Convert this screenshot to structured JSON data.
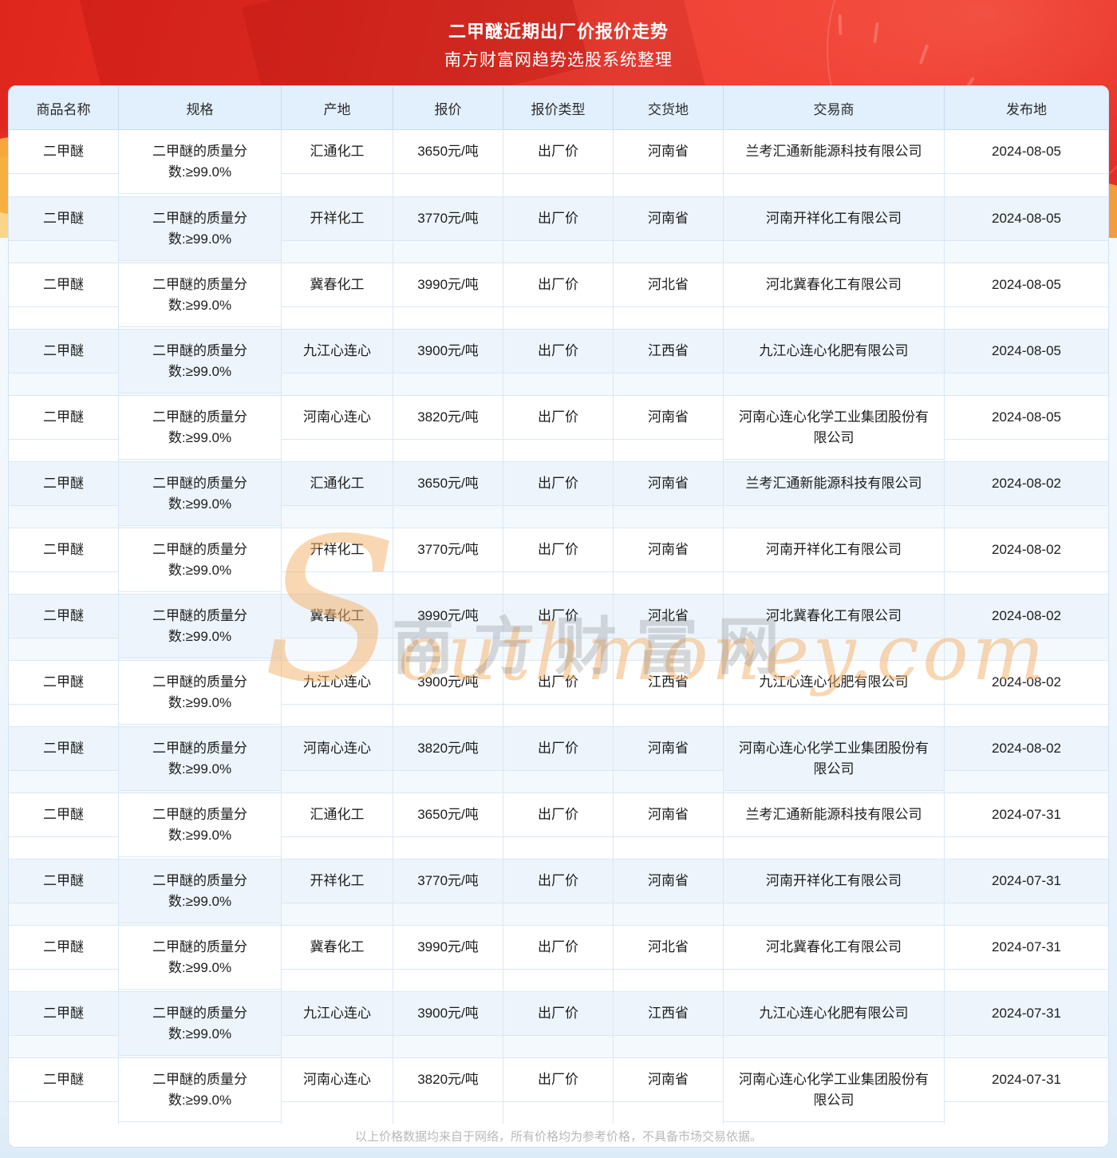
{
  "banner": {
    "title": "二甲醚近期出厂价报价走势",
    "subtitle": "南方财富网趋势选股系统整理"
  },
  "watermark": {
    "cjk": "南方财富网",
    "latin_initial": "S",
    "latin_rest": "outhmoney.com"
  },
  "table": {
    "columns": [
      {
        "key": "product",
        "label": "商品名称"
      },
      {
        "key": "spec",
        "label": "规格"
      },
      {
        "key": "origin",
        "label": "产地"
      },
      {
        "key": "price",
        "label": "报价"
      },
      {
        "key": "price_type",
        "label": "报价类型"
      },
      {
        "key": "delivery",
        "label": "交货地"
      },
      {
        "key": "trader",
        "label": "交易商"
      },
      {
        "key": "pub",
        "label": "发布地"
      }
    ],
    "rows": [
      {
        "product": "二甲醚",
        "spec": "二甲醚的质量分数:≥99.0%",
        "origin": "汇通化工",
        "price": "3650元/吨",
        "price_type": "出厂价",
        "delivery": "河南省",
        "trader": "兰考汇通新能源科技有限公司",
        "date": "2024-08-05"
      },
      {
        "product": "二甲醚",
        "spec": "二甲醚的质量分数:≥99.0%",
        "origin": "开祥化工",
        "price": "3770元/吨",
        "price_type": "出厂价",
        "delivery": "河南省",
        "trader": "河南开祥化工有限公司",
        "date": "2024-08-05"
      },
      {
        "product": "二甲醚",
        "spec": "二甲醚的质量分数:≥99.0%",
        "origin": "冀春化工",
        "price": "3990元/吨",
        "price_type": "出厂价",
        "delivery": "河北省",
        "trader": "河北冀春化工有限公司",
        "date": "2024-08-05"
      },
      {
        "product": "二甲醚",
        "spec": "二甲醚的质量分数:≥99.0%",
        "origin": "九江心连心",
        "price": "3900元/吨",
        "price_type": "出厂价",
        "delivery": "江西省",
        "trader": "九江心连心化肥有限公司",
        "date": "2024-08-05"
      },
      {
        "product": "二甲醚",
        "spec": "二甲醚的质量分数:≥99.0%",
        "origin": "河南心连心",
        "price": "3820元/吨",
        "price_type": "出厂价",
        "delivery": "河南省",
        "trader": "河南心连心化学工业集团股份有限公司",
        "date": "2024-08-05"
      },
      {
        "product": "二甲醚",
        "spec": "二甲醚的质量分数:≥99.0%",
        "origin": "汇通化工",
        "price": "3650元/吨",
        "price_type": "出厂价",
        "delivery": "河南省",
        "trader": "兰考汇通新能源科技有限公司",
        "date": "2024-08-02"
      },
      {
        "product": "二甲醚",
        "spec": "二甲醚的质量分数:≥99.0%",
        "origin": "开祥化工",
        "price": "3770元/吨",
        "price_type": "出厂价",
        "delivery": "河南省",
        "trader": "河南开祥化工有限公司",
        "date": "2024-08-02"
      },
      {
        "product": "二甲醚",
        "spec": "二甲醚的质量分数:≥99.0%",
        "origin": "冀春化工",
        "price": "3990元/吨",
        "price_type": "出厂价",
        "delivery": "河北省",
        "trader": "河北冀春化工有限公司",
        "date": "2024-08-02"
      },
      {
        "product": "二甲醚",
        "spec": "二甲醚的质量分数:≥99.0%",
        "origin": "九江心连心",
        "price": "3900元/吨",
        "price_type": "出厂价",
        "delivery": "江西省",
        "trader": "九江心连心化肥有限公司",
        "date": "2024-08-02"
      },
      {
        "product": "二甲醚",
        "spec": "二甲醚的质量分数:≥99.0%",
        "origin": "河南心连心",
        "price": "3820元/吨",
        "price_type": "出厂价",
        "delivery": "河南省",
        "trader": "河南心连心化学工业集团股份有限公司",
        "date": "2024-08-02"
      },
      {
        "product": "二甲醚",
        "spec": "二甲醚的质量分数:≥99.0%",
        "origin": "汇通化工",
        "price": "3650元/吨",
        "price_type": "出厂价",
        "delivery": "河南省",
        "trader": "兰考汇通新能源科技有限公司",
        "date": "2024-07-31"
      },
      {
        "product": "二甲醚",
        "spec": "二甲醚的质量分数:≥99.0%",
        "origin": "开祥化工",
        "price": "3770元/吨",
        "price_type": "出厂价",
        "delivery": "河南省",
        "trader": "河南开祥化工有限公司",
        "date": "2024-07-31"
      },
      {
        "product": "二甲醚",
        "spec": "二甲醚的质量分数:≥99.0%",
        "origin": "冀春化工",
        "price": "3990元/吨",
        "price_type": "出厂价",
        "delivery": "河北省",
        "trader": "河北冀春化工有限公司",
        "date": "2024-07-31"
      },
      {
        "product": "二甲醚",
        "spec": "二甲醚的质量分数:≥99.0%",
        "origin": "九江心连心",
        "price": "3900元/吨",
        "price_type": "出厂价",
        "delivery": "江西省",
        "trader": "九江心连心化肥有限公司",
        "date": "2024-07-31"
      },
      {
        "product": "二甲醚",
        "spec": "二甲醚的质量分数:≥99.0%",
        "origin": "河南心连心",
        "price": "3820元/吨",
        "price_type": "出厂价",
        "delivery": "河南省",
        "trader": "河南心连心化学工业集团股份有限公司",
        "date": "2024-07-31"
      }
    ]
  },
  "footer": {
    "note": "以上价格数据均来自于网络，所有价格均为参考价格，不具备市场交易依据。"
  },
  "colors": {
    "banner_red": "#ee392d",
    "header_bg": "#e2effc",
    "alt_row_bg": "#edf4fb",
    "border": "#d9e8f6",
    "watermark_orange": "#f3b26c",
    "note_gray": "#b9b9b9"
  }
}
